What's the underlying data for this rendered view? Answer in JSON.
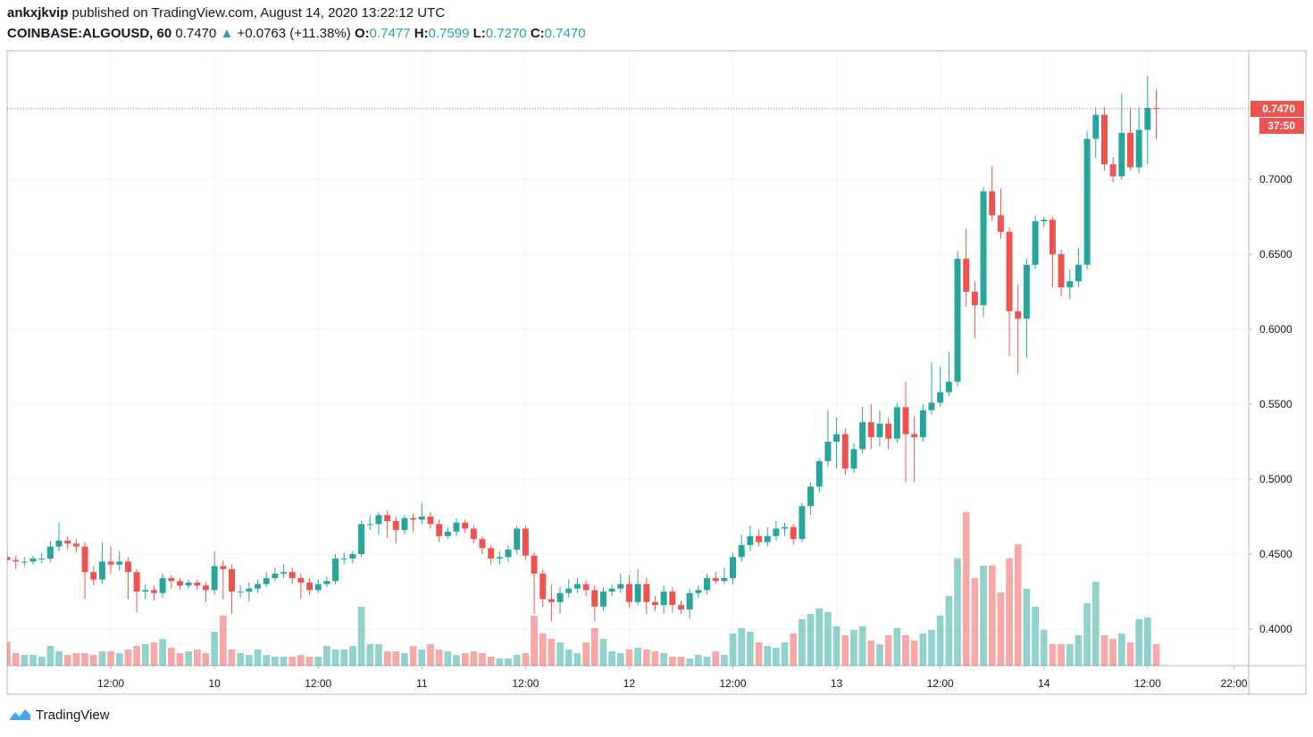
{
  "header": {
    "author": "ankxjkvip",
    "published": "published on TradingView.com, August 14, 2020 13:22:12 UTC",
    "symbol": "COINBASE:ALGOUSD, 60",
    "price": "0.7470",
    "arrow": "▲",
    "change": "+0.0763 (+11.38%)",
    "ohlc": [
      {
        "label": "O:",
        "value": "0.7477"
      },
      {
        "label": "H:",
        "value": "0.7599"
      },
      {
        "label": "L:",
        "value": "0.7270"
      },
      {
        "label": "C:",
        "value": "0.7470"
      }
    ]
  },
  "footer": {
    "brand": "TradingView"
  },
  "chart_data": {
    "type": "candlestick",
    "up_color": "#26a69a",
    "down_color": "#ef5350",
    "grid": true,
    "xlim": [
      0,
      143.7
    ],
    "ylim": [
      0.3756,
      0.7857
    ],
    "xticks": [
      {
        "value": 12,
        "label": "12:00"
      },
      {
        "value": 24,
        "label": "10"
      },
      {
        "value": 36,
        "label": "12:00"
      },
      {
        "value": 48,
        "label": "11"
      },
      {
        "value": 60,
        "label": "12:00"
      },
      {
        "value": 72,
        "label": "12"
      },
      {
        "value": 84,
        "label": "12:00"
      },
      {
        "value": 96,
        "label": "13"
      },
      {
        "value": 108,
        "label": "12:00"
      },
      {
        "value": 120,
        "label": "14"
      },
      {
        "value": 132,
        "label": "12:00"
      },
      {
        "value": 142,
        "label": "22:00"
      }
    ],
    "yticks": [
      {
        "value": 0.4,
        "label": "0.4000"
      },
      {
        "value": 0.45,
        "label": "0.4500"
      },
      {
        "value": 0.5,
        "label": "0.5000"
      },
      {
        "value": 0.55,
        "label": "0.5500"
      },
      {
        "value": 0.6,
        "label": "0.6000"
      },
      {
        "value": 0.65,
        "label": "0.6500"
      },
      {
        "value": 0.7,
        "label": "0.7000"
      }
    ],
    "last_price": {
      "value": 0.747,
      "label": "0.7470"
    },
    "countdown": "37:50",
    "candles": [
      [
        0.448,
        0.452,
        0.443,
        0.446,
        27
      ],
      [
        0.446,
        0.449,
        0.44,
        0.445,
        14
      ],
      [
        0.445,
        0.448,
        0.442,
        0.445,
        12
      ],
      [
        0.445,
        0.449,
        0.443,
        0.447,
        12
      ],
      [
        0.447,
        0.451,
        0.444,
        0.447,
        10
      ],
      [
        0.447,
        0.459,
        0.445,
        0.455,
        22
      ],
      [
        0.455,
        0.471,
        0.452,
        0.459,
        16
      ],
      [
        0.459,
        0.462,
        0.453,
        0.457,
        12
      ],
      [
        0.457,
        0.46,
        0.451,
        0.455,
        14
      ],
      [
        0.455,
        0.458,
        0.42,
        0.438,
        14
      ],
      [
        0.438,
        0.442,
        0.429,
        0.433,
        12
      ],
      [
        0.433,
        0.458,
        0.43,
        0.445,
        16
      ],
      [
        0.445,
        0.455,
        0.437,
        0.443,
        16
      ],
      [
        0.443,
        0.452,
        0.439,
        0.445,
        14
      ],
      [
        0.445,
        0.448,
        0.42,
        0.438,
        18
      ],
      [
        0.438,
        0.44,
        0.411,
        0.425,
        22
      ],
      [
        0.425,
        0.43,
        0.42,
        0.426,
        24
      ],
      [
        0.426,
        0.429,
        0.419,
        0.424,
        26
      ],
      [
        0.424,
        0.437,
        0.421,
        0.434,
        30
      ],
      [
        0.434,
        0.436,
        0.427,
        0.432,
        20
      ],
      [
        0.432,
        0.434,
        0.426,
        0.429,
        14
      ],
      [
        0.429,
        0.433,
        0.427,
        0.431,
        16
      ],
      [
        0.431,
        0.433,
        0.426,
        0.429,
        18
      ],
      [
        0.429,
        0.431,
        0.418,
        0.426,
        14
      ],
      [
        0.426,
        0.452,
        0.423,
        0.442,
        38
      ],
      [
        0.442,
        0.446,
        0.42,
        0.44,
        56
      ],
      [
        0.44,
        0.443,
        0.41,
        0.425,
        18
      ],
      [
        0.425,
        0.429,
        0.421,
        0.425,
        14
      ],
      [
        0.425,
        0.431,
        0.418,
        0.427,
        12
      ],
      [
        0.427,
        0.433,
        0.424,
        0.43,
        18
      ],
      [
        0.43,
        0.438,
        0.428,
        0.434,
        12
      ],
      [
        0.434,
        0.441,
        0.432,
        0.437,
        10
      ],
      [
        0.437,
        0.443,
        0.434,
        0.438,
        10
      ],
      [
        0.438,
        0.441,
        0.43,
        0.434,
        10
      ],
      [
        0.434,
        0.437,
        0.42,
        0.431,
        12
      ],
      [
        0.431,
        0.434,
        0.423,
        0.426,
        10
      ],
      [
        0.426,
        0.433,
        0.424,
        0.43,
        10
      ],
      [
        0.43,
        0.435,
        0.428,
        0.432,
        22
      ],
      [
        0.432,
        0.45,
        0.43,
        0.447,
        18
      ],
      [
        0.447,
        0.451,
        0.443,
        0.447,
        18
      ],
      [
        0.447,
        0.452,
        0.444,
        0.45,
        22
      ],
      [
        0.45,
        0.472,
        0.448,
        0.47,
        66
      ],
      [
        0.47,
        0.476,
        0.466,
        0.47,
        24
      ],
      [
        0.47,
        0.478,
        0.463,
        0.476,
        24
      ],
      [
        0.476,
        0.479,
        0.461,
        0.472,
        16
      ],
      [
        0.472,
        0.475,
        0.457,
        0.466,
        16
      ],
      [
        0.466,
        0.476,
        0.463,
        0.474,
        14
      ],
      [
        0.474,
        0.477,
        0.465,
        0.473,
        22
      ],
      [
        0.473,
        0.484,
        0.47,
        0.475,
        18
      ],
      [
        0.475,
        0.478,
        0.467,
        0.47,
        24
      ],
      [
        0.47,
        0.473,
        0.458,
        0.462,
        18
      ],
      [
        0.462,
        0.468,
        0.46,
        0.465,
        16
      ],
      [
        0.465,
        0.474,
        0.462,
        0.471,
        12
      ],
      [
        0.471,
        0.473,
        0.464,
        0.467,
        14
      ],
      [
        0.467,
        0.469,
        0.457,
        0.46,
        16
      ],
      [
        0.46,
        0.462,
        0.45,
        0.454,
        14
      ],
      [
        0.454,
        0.456,
        0.443,
        0.447,
        10
      ],
      [
        0.447,
        0.452,
        0.443,
        0.448,
        8
      ],
      [
        0.448,
        0.456,
        0.445,
        0.453,
        8
      ],
      [
        0.453,
        0.469,
        0.45,
        0.467,
        12
      ],
      [
        0.467,
        0.469,
        0.446,
        0.449,
        14
      ],
      [
        0.449,
        0.451,
        0.41,
        0.437,
        56
      ],
      [
        0.437,
        0.44,
        0.415,
        0.42,
        36
      ],
      [
        0.42,
        0.43,
        0.405,
        0.418,
        30
      ],
      [
        0.418,
        0.428,
        0.41,
        0.424,
        26
      ],
      [
        0.424,
        0.433,
        0.421,
        0.427,
        18
      ],
      [
        0.427,
        0.434,
        0.424,
        0.43,
        14
      ],
      [
        0.43,
        0.433,
        0.422,
        0.426,
        26
      ],
      [
        0.426,
        0.429,
        0.405,
        0.415,
        42
      ],
      [
        0.415,
        0.428,
        0.412,
        0.425,
        30
      ],
      [
        0.425,
        0.43,
        0.422,
        0.427,
        16
      ],
      [
        0.427,
        0.437,
        0.424,
        0.43,
        14
      ],
      [
        0.43,
        0.436,
        0.414,
        0.418,
        18
      ],
      [
        0.418,
        0.44,
        0.416,
        0.43,
        20
      ],
      [
        0.43,
        0.434,
        0.41,
        0.418,
        18
      ],
      [
        0.418,
        0.422,
        0.412,
        0.416,
        16
      ],
      [
        0.416,
        0.429,
        0.41,
        0.425,
        14
      ],
      [
        0.425,
        0.428,
        0.411,
        0.416,
        10
      ],
      [
        0.416,
        0.419,
        0.41,
        0.413,
        10
      ],
      [
        0.413,
        0.427,
        0.407,
        0.424,
        8
      ],
      [
        0.424,
        0.429,
        0.421,
        0.426,
        12
      ],
      [
        0.426,
        0.437,
        0.423,
        0.434,
        10
      ],
      [
        0.434,
        0.438,
        0.43,
        0.432,
        16
      ],
      [
        0.432,
        0.441,
        0.43,
        0.434,
        12
      ],
      [
        0.434,
        0.451,
        0.43,
        0.448,
        36
      ],
      [
        0.448,
        0.463,
        0.445,
        0.456,
        42
      ],
      [
        0.456,
        0.469,
        0.452,
        0.462,
        38
      ],
      [
        0.462,
        0.466,
        0.455,
        0.458,
        26
      ],
      [
        0.458,
        0.468,
        0.455,
        0.462,
        22
      ],
      [
        0.462,
        0.472,
        0.459,
        0.467,
        20
      ],
      [
        0.467,
        0.471,
        0.462,
        0.468,
        26
      ],
      [
        0.468,
        0.47,
        0.456,
        0.46,
        36
      ],
      [
        0.46,
        0.484,
        0.458,
        0.482,
        52
      ],
      [
        0.482,
        0.498,
        0.476,
        0.495,
        58
      ],
      [
        0.495,
        0.514,
        0.491,
        0.512,
        64
      ],
      [
        0.512,
        0.546,
        0.508,
        0.525,
        60
      ],
      [
        0.525,
        0.541,
        0.507,
        0.53,
        44
      ],
      [
        0.53,
        0.534,
        0.503,
        0.507,
        34
      ],
      [
        0.507,
        0.524,
        0.504,
        0.52,
        40
      ],
      [
        0.52,
        0.548,
        0.517,
        0.538,
        44
      ],
      [
        0.538,
        0.55,
        0.52,
        0.528,
        28
      ],
      [
        0.528,
        0.546,
        0.522,
        0.537,
        24
      ],
      [
        0.537,
        0.541,
        0.52,
        0.527,
        34
      ],
      [
        0.527,
        0.551,
        0.524,
        0.548,
        42
      ],
      [
        0.548,
        0.565,
        0.498,
        0.53,
        34
      ],
      [
        0.53,
        0.542,
        0.498,
        0.528,
        28
      ],
      [
        0.528,
        0.55,
        0.525,
        0.546,
        36
      ],
      [
        0.546,
        0.578,
        0.543,
        0.551,
        40
      ],
      [
        0.551,
        0.575,
        0.548,
        0.558,
        56
      ],
      [
        0.558,
        0.585,
        0.555,
        0.565,
        78
      ],
      [
        0.565,
        0.652,
        0.562,
        0.647,
        120
      ],
      [
        0.647,
        0.667,
        0.615,
        0.625,
        172
      ],
      [
        0.625,
        0.632,
        0.594,
        0.616,
        98
      ],
      [
        0.616,
        0.695,
        0.608,
        0.692,
        112
      ],
      [
        0.692,
        0.709,
        0.672,
        0.676,
        112
      ],
      [
        0.676,
        0.694,
        0.66,
        0.665,
        82
      ],
      [
        0.665,
        0.668,
        0.582,
        0.612,
        120
      ],
      [
        0.612,
        0.63,
        0.57,
        0.607,
        136
      ],
      [
        0.607,
        0.647,
        0.581,
        0.643,
        86
      ],
      [
        0.643,
        0.676,
        0.64,
        0.672,
        66
      ],
      [
        0.672,
        0.675,
        0.668,
        0.673,
        40
      ],
      [
        0.673,
        0.675,
        0.628,
        0.65,
        24
      ],
      [
        0.65,
        0.653,
        0.622,
        0.628,
        24
      ],
      [
        0.628,
        0.64,
        0.62,
        0.632,
        24
      ],
      [
        0.632,
        0.654,
        0.628,
        0.643,
        34
      ],
      [
        0.643,
        0.732,
        0.64,
        0.727,
        70
      ],
      [
        0.727,
        0.748,
        0.714,
        0.743,
        94
      ],
      [
        0.743,
        0.748,
        0.706,
        0.71,
        34
      ],
      [
        0.71,
        0.715,
        0.698,
        0.702,
        30
      ],
      [
        0.702,
        0.757,
        0.7,
        0.731,
        36
      ],
      [
        0.731,
        0.748,
        0.706,
        0.708,
        26
      ],
      [
        0.708,
        0.748,
        0.704,
        0.733,
        52
      ],
      [
        0.733,
        0.769,
        0.71,
        0.7477,
        54
      ],
      [
        0.7477,
        0.7599,
        0.727,
        0.747,
        24
      ]
    ]
  }
}
